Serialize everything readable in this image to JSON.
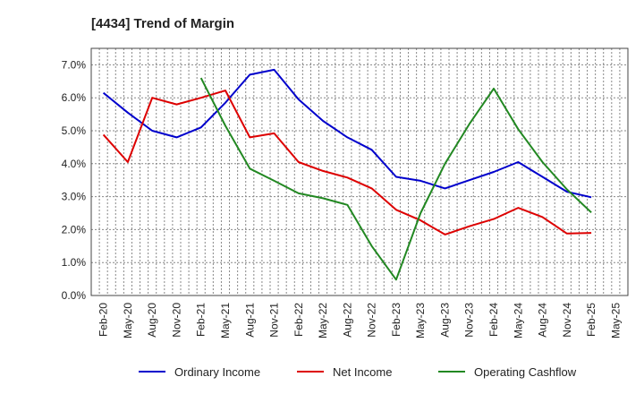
{
  "chart_data": {
    "type": "line",
    "title": "[4434]  Trend of Margin",
    "xlabel": "",
    "ylabel": "",
    "categories": [
      "Feb-20",
      "May-20",
      "Aug-20",
      "Nov-20",
      "Feb-21",
      "May-21",
      "Aug-21",
      "Nov-21",
      "Feb-22",
      "May-22",
      "Aug-22",
      "Nov-22",
      "Feb-23",
      "May-23",
      "Aug-23",
      "Nov-23",
      "Feb-24",
      "May-24",
      "Aug-24",
      "Nov-24",
      "Feb-25",
      "May-25"
    ],
    "yticks": [
      "0.0%",
      "1.0%",
      "2.0%",
      "3.0%",
      "4.0%",
      "5.0%",
      "6.0%",
      "7.0%"
    ],
    "ylim": [
      0,
      7.5
    ],
    "grid": true,
    "legend_position": "bottom",
    "series": [
      {
        "name": "Ordinary Income",
        "color": "#0000cc",
        "values": [
          6.15,
          5.55,
          5.0,
          4.8,
          5.1,
          5.85,
          6.7,
          6.85,
          5.95,
          5.3,
          4.8,
          4.42,
          3.6,
          3.48,
          3.25,
          3.5,
          3.75,
          4.05,
          3.6,
          3.15,
          2.98,
          null
        ]
      },
      {
        "name": "Net Income",
        "color": "#dd0000",
        "values": [
          4.88,
          4.05,
          6.0,
          5.8,
          6.0,
          6.22,
          4.8,
          4.92,
          4.05,
          3.78,
          3.58,
          3.25,
          2.6,
          2.28,
          1.85,
          2.1,
          2.32,
          2.66,
          2.38,
          1.88,
          1.9,
          null
        ]
      },
      {
        "name": "Operating Cashflow",
        "color": "#228822",
        "values": [
          null,
          null,
          null,
          null,
          6.6,
          5.15,
          3.85,
          3.48,
          3.1,
          2.95,
          2.75,
          1.5,
          0.48,
          2.5,
          4.0,
          5.2,
          6.28,
          5.05,
          4.05,
          3.22,
          2.52,
          null
        ]
      }
    ]
  }
}
